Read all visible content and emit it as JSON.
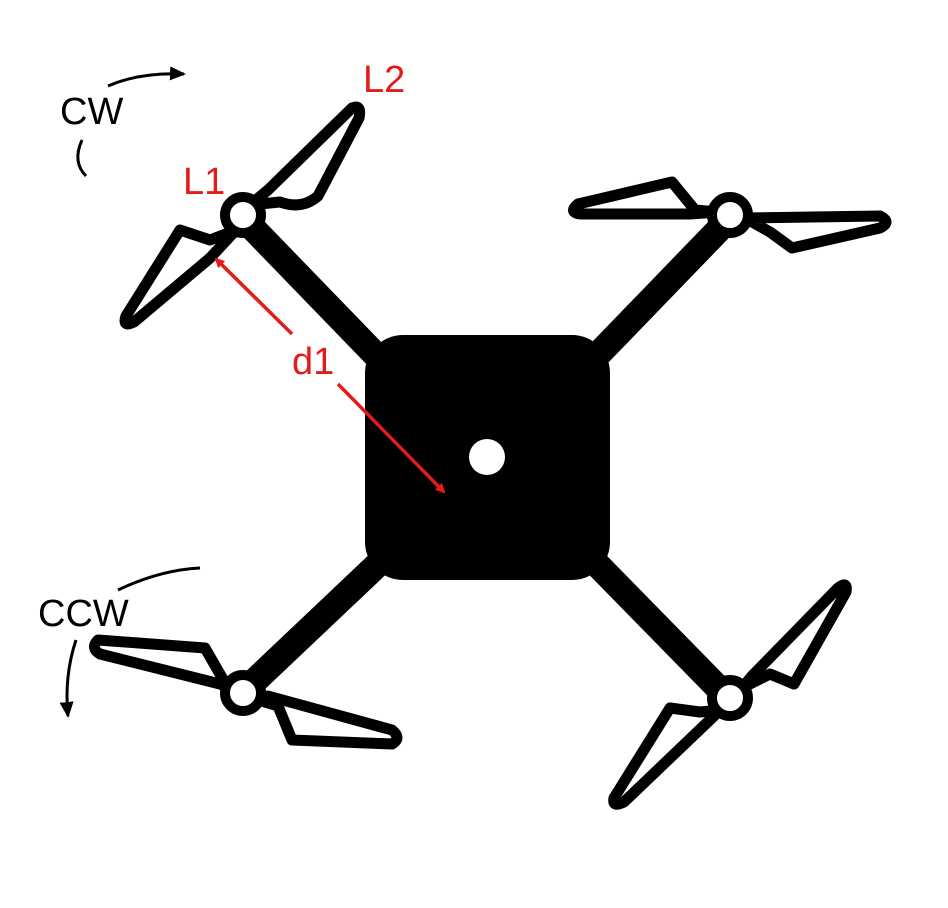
{
  "labels": {
    "cw": "CW",
    "ccw": "CCW",
    "l1": "L1",
    "l2": "L2",
    "d1": "d1"
  },
  "colors": {
    "drone": "#000000",
    "annotation": "#e31b1b",
    "background": "#ffffff",
    "center_marker": "#ffffff"
  },
  "components": {
    "arms": [
      "front-left",
      "front-right",
      "rear-left",
      "rear-right"
    ],
    "propeller_blades_per_motor": 2
  }
}
